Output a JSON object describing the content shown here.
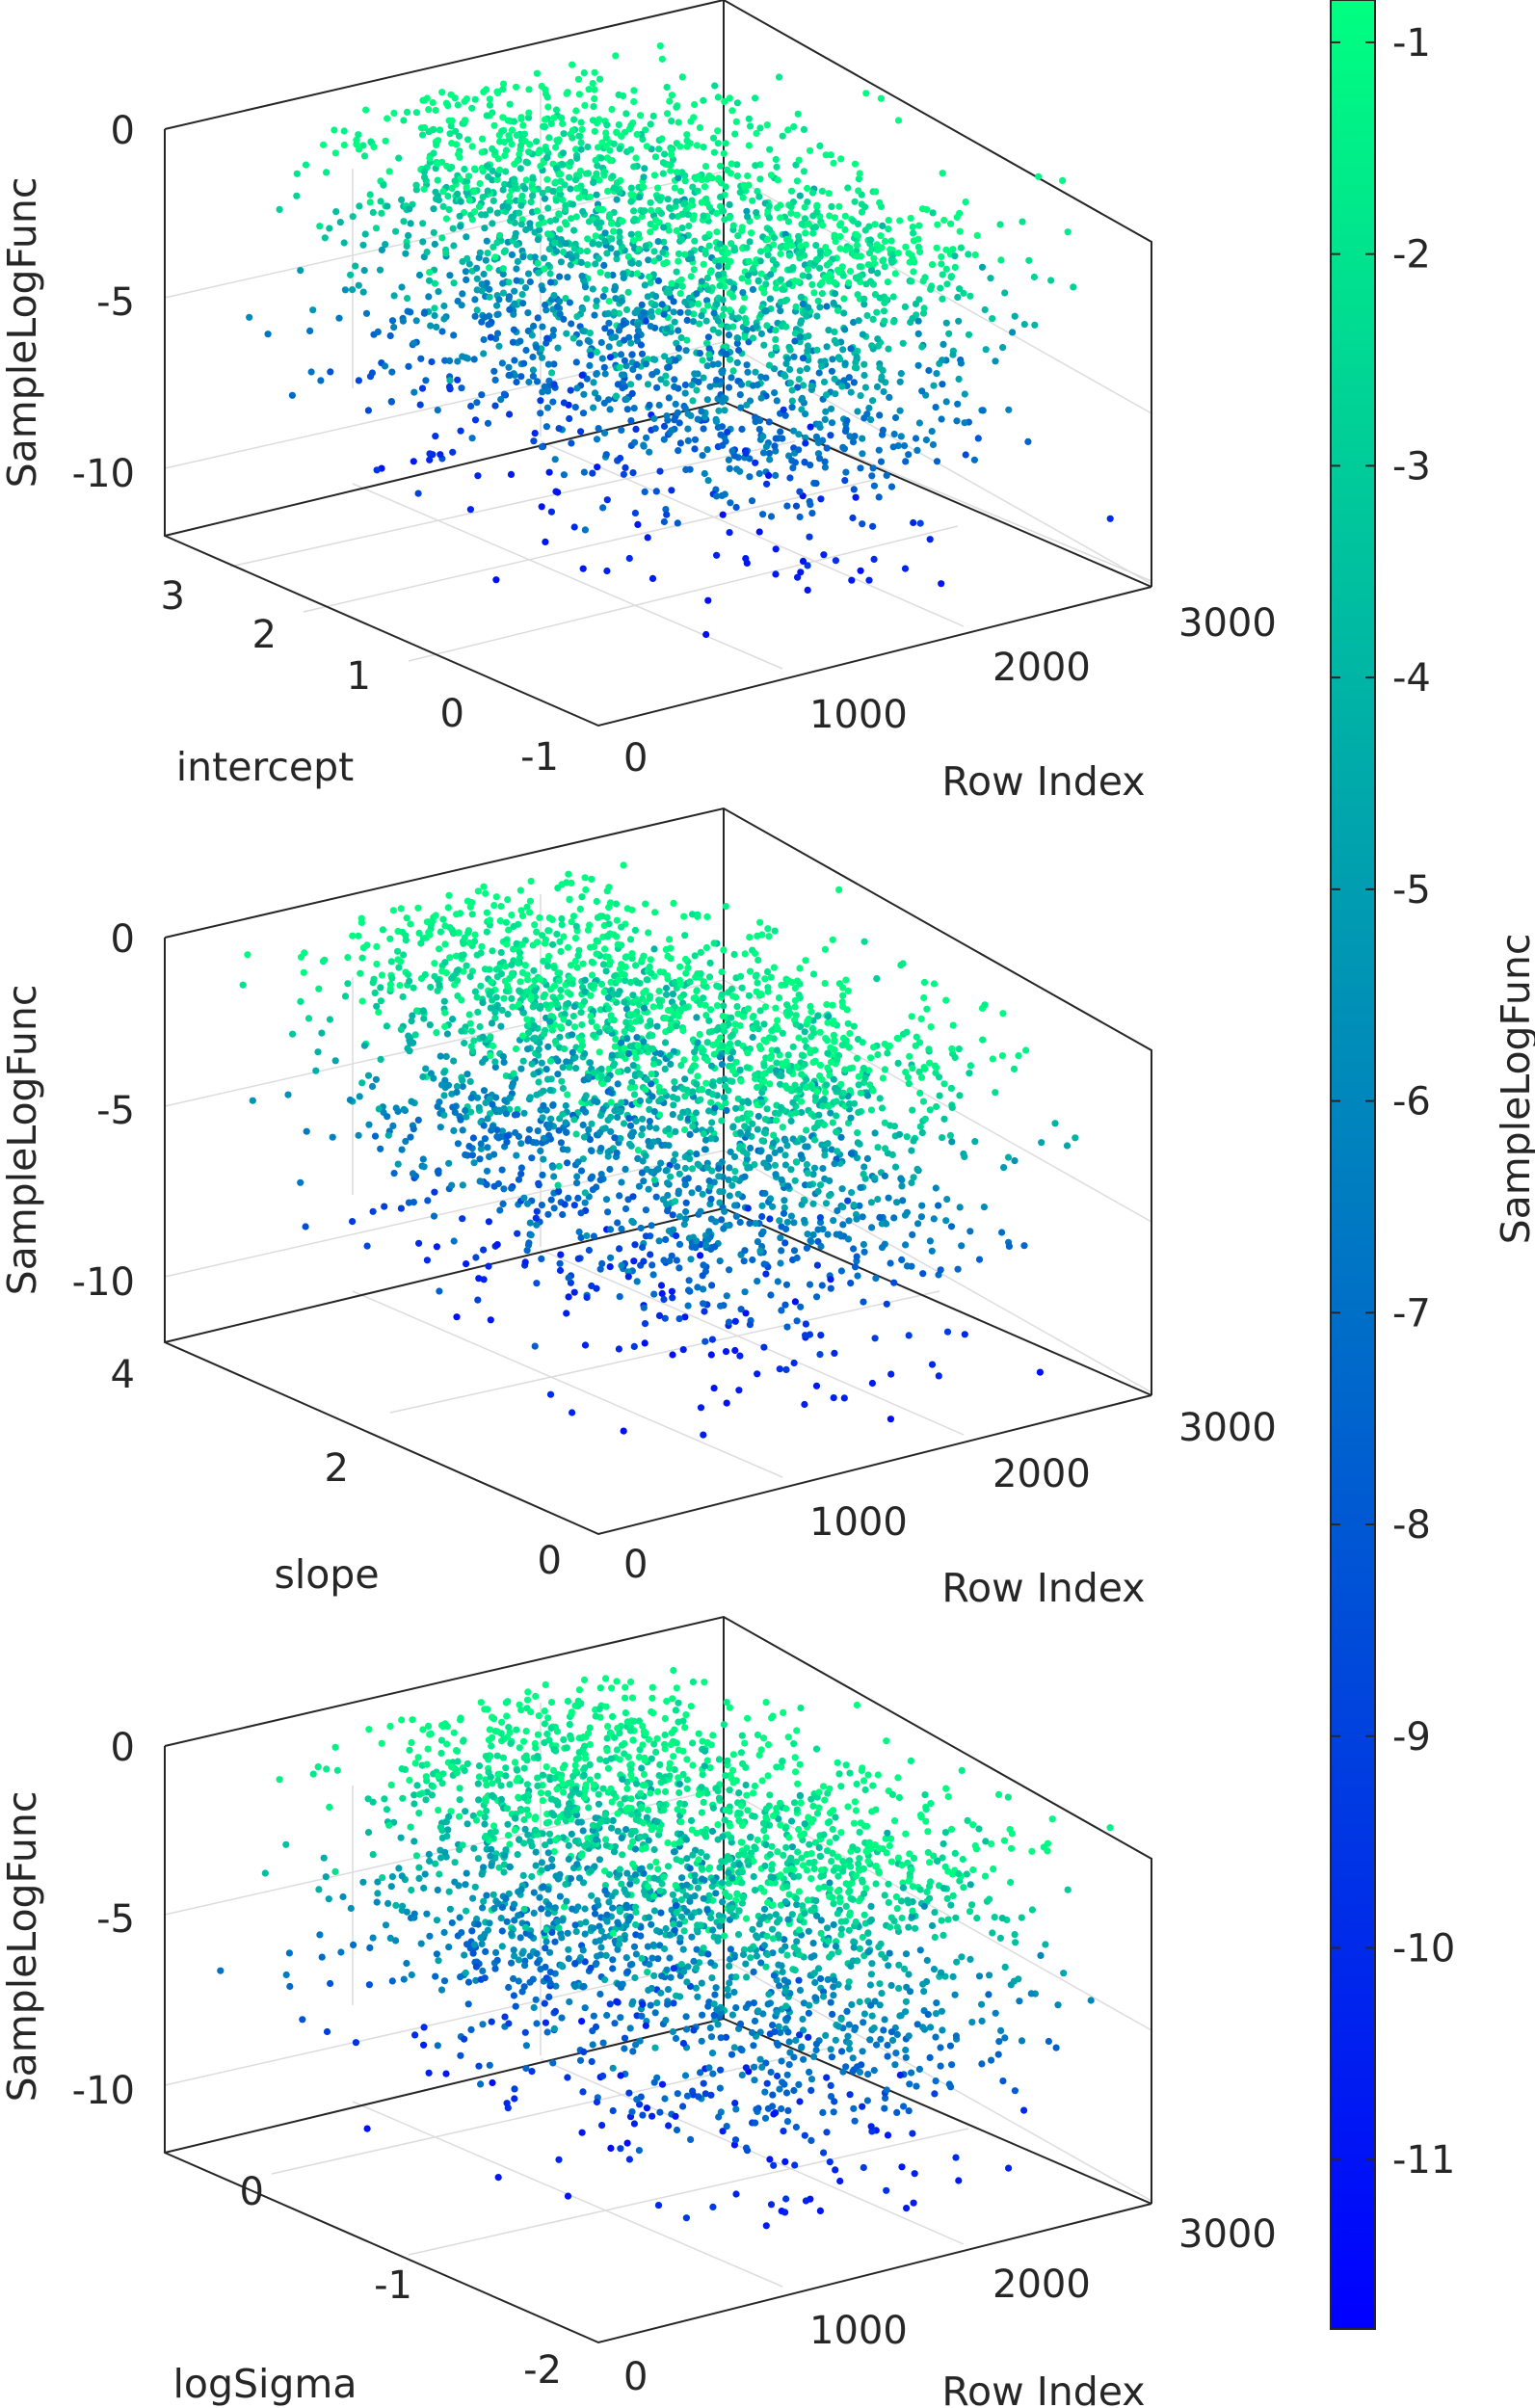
{
  "chart_data": [
    {
      "type": "scatter3d",
      "xlabel": "Row Index",
      "ylabel": "intercept",
      "zlabel": "SampleLogFunc",
      "xlim": [
        0,
        3000
      ],
      "ylim": [
        -1,
        3.5
      ],
      "zlim": [
        -12,
        0
      ],
      "xticks": [
        "0",
        "1000",
        "2000",
        "3000"
      ],
      "yticks": [
        "-1",
        "0",
        "1",
        "2",
        "3"
      ],
      "zticks": [
        "-10",
        "-5",
        "0"
      ],
      "grid": true,
      "point_count": 2500,
      "color_by": "SampleLogFunc",
      "value_distribution": {
        "max": -0.9,
        "typical_min": -5.5,
        "outlier_min": -11.2,
        "y_center": 1.2,
        "y_spread": 0.7
      }
    },
    {
      "type": "scatter3d",
      "xlabel": "Row Index",
      "ylabel": "slope",
      "zlabel": "SampleLogFunc",
      "xlim": [
        0,
        3000
      ],
      "ylim": [
        0,
        4
      ],
      "zlim": [
        -12,
        0
      ],
      "xticks": [
        "0",
        "1000",
        "2000",
        "3000"
      ],
      "yticks": [
        "0",
        "2",
        "4"
      ],
      "zticks": [
        "-10",
        "-5",
        "0"
      ],
      "grid": true,
      "point_count": 2500,
      "color_by": "SampleLogFunc",
      "value_distribution": {
        "max": -0.9,
        "typical_min": -5.5,
        "outlier_min": -11.2,
        "y_center": 2.0,
        "y_spread": 0.6
      }
    },
    {
      "type": "scatter3d",
      "xlabel": "Row Index",
      "ylabel": "logSigma",
      "zlabel": "SampleLogFunc",
      "xlim": [
        0,
        3000
      ],
      "ylim": [
        -2,
        0.8
      ],
      "zlim": [
        -12,
        0
      ],
      "xticks": [
        "0",
        "1000",
        "2000",
        "3000"
      ],
      "yticks": [
        "-2",
        "-1",
        "0"
      ],
      "zticks": [
        "-10",
        "-5",
        "0"
      ],
      "grid": true,
      "point_count": 2500,
      "color_by": "SampleLogFunc",
      "value_distribution": {
        "max": -0.9,
        "typical_min": -5.5,
        "outlier_min": -11.2,
        "y_center": -0.75,
        "y_spread": 0.45
      }
    }
  ],
  "colorbar": {
    "label": "SampleLogFunc",
    "range": [
      -11.8,
      -0.8
    ],
    "ticks": [
      "-1",
      "-2",
      "-3",
      "-4",
      "-5",
      "-6",
      "-7",
      "-8",
      "-9",
      "-10",
      "-11"
    ],
    "colormap": [
      "#0000ff",
      "#00ff80"
    ]
  }
}
